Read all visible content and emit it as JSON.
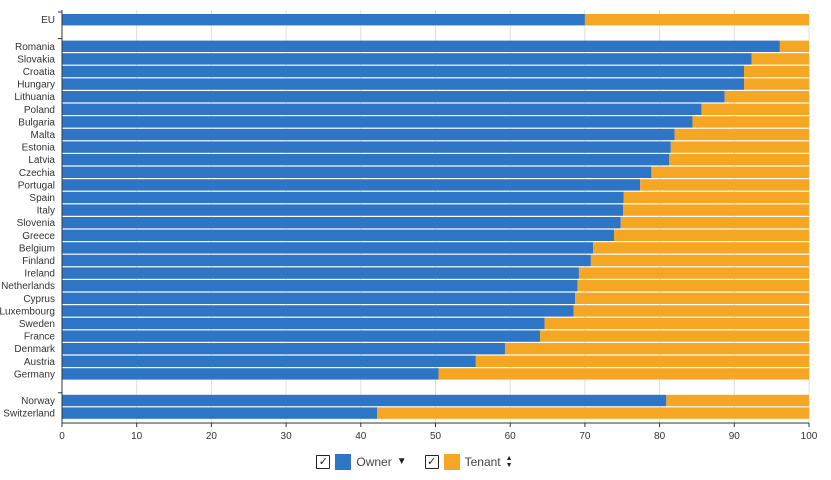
{
  "chart_data": {
    "type": "bar",
    "orientation": "horizontal",
    "stacked": true,
    "groups": [
      [
        "EU"
      ],
      [
        "Romania",
        "Slovakia",
        "Croatia",
        "Hungary",
        "Lithuania",
        "Poland",
        "Bulgaria",
        "Malta",
        "Estonia",
        "Latvia",
        "Czechia",
        "Portugal",
        "Spain",
        "Italy",
        "Slovenia",
        "Greece",
        "Belgium",
        "Finland",
        "Ireland",
        "Netherlands",
        "Cyprus",
        "Luxembourg",
        "Sweden",
        "France",
        "Denmark",
        "Austria",
        "Germany"
      ],
      [
        "Norway",
        "Switzerland"
      ]
    ],
    "categories": [
      "EU",
      "Romania",
      "Slovakia",
      "Croatia",
      "Hungary",
      "Lithuania",
      "Poland",
      "Bulgaria",
      "Malta",
      "Estonia",
      "Latvia",
      "Czechia",
      "Portugal",
      "Spain",
      "Italy",
      "Slovenia",
      "Greece",
      "Belgium",
      "Finland",
      "Ireland",
      "Netherlands",
      "Cyprus",
      "Luxembourg",
      "Sweden",
      "France",
      "Denmark",
      "Austria",
      "Germany",
      "Norway",
      "Switzerland"
    ],
    "series": [
      {
        "name": "Owner",
        "color": "#2e75c6",
        "values": [
          70.0,
          96.1,
          92.3,
          91.3,
          91.3,
          88.7,
          85.6,
          84.4,
          82.0,
          81.5,
          81.3,
          78.9,
          77.4,
          75.2,
          75.1,
          74.8,
          73.9,
          71.1,
          70.8,
          69.2,
          69.0,
          68.7,
          68.5,
          64.6,
          64.0,
          59.3,
          55.4,
          50.4,
          80.9,
          42.2
        ]
      },
      {
        "name": "Tenant",
        "color": "#f5a623",
        "values": [
          30.0,
          3.9,
          7.7,
          8.7,
          8.7,
          11.3,
          14.4,
          15.6,
          18.0,
          18.5,
          18.7,
          21.1,
          22.6,
          24.8,
          24.9,
          25.2,
          26.1,
          28.9,
          29.2,
          30.8,
          31.0,
          31.3,
          31.5,
          35.4,
          36.0,
          40.7,
          44.6,
          49.6,
          19.1,
          57.8
        ]
      }
    ],
    "xlim": [
      0,
      100
    ],
    "xticks": [
      0,
      10,
      20,
      30,
      40,
      50,
      60,
      70,
      80,
      90,
      100
    ],
    "grid": true
  },
  "legend": {
    "owner_label": "Owner",
    "tenant_label": "Tenant",
    "check_glyph": "✓",
    "owner_sort_glyph": "▼",
    "tenant_sort_glyph": "▲▼"
  }
}
